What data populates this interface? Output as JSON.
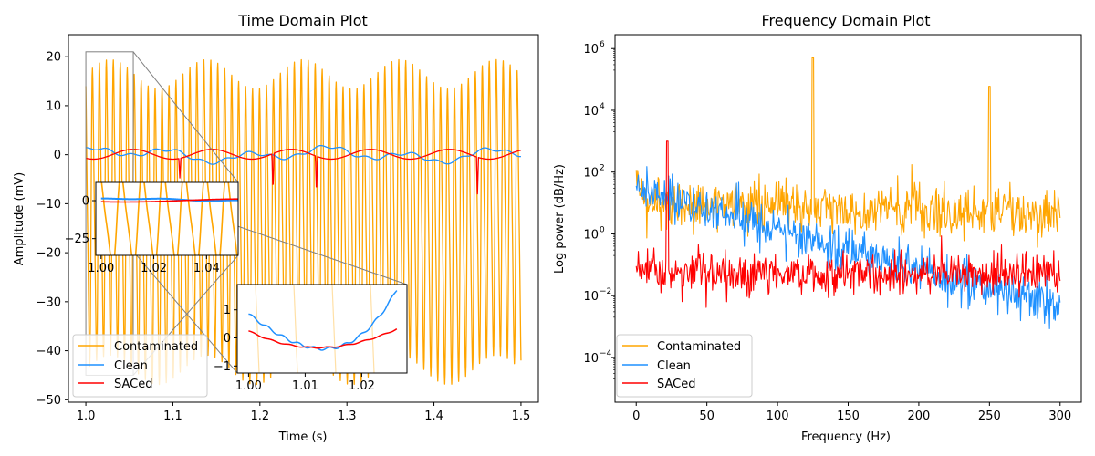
{
  "chart_data": [
    {
      "type": "line",
      "title": "Time Domain Plot",
      "xlabel": "Time (s)",
      "ylabel": "Amplitude (mV)",
      "xlim": [
        0.98,
        1.52
      ],
      "ylim": [
        -50.5,
        24.5
      ],
      "xticks": [
        1.0,
        1.1,
        1.2,
        1.3,
        1.4,
        1.5
      ],
      "xtick_labels": [
        "1.0",
        "1.1",
        "1.2",
        "1.3",
        "1.4",
        "1.5"
      ],
      "yticks": [
        20,
        10,
        0,
        -10,
        -20,
        -30,
        -40,
        -50
      ],
      "ytick_labels": [
        "20",
        "10",
        "0",
        "−10",
        "−20",
        "−30",
        "−40",
        "−50"
      ],
      "legend": {
        "placement": "lower-left",
        "entries": [
          "Contaminated",
          "Clean",
          "SACed"
        ]
      },
      "series": [
        {
          "name": "Contaminated",
          "color": "#ffa500",
          "description": "~125 Hz oscillation, amplitude roughly +14 / -42 mV, plus slow artifact"
        },
        {
          "name": "Clean",
          "color": "#1e90ff",
          "description": "slow wave, amplitude about ±2 mV"
        },
        {
          "name": "SACed",
          "color": "#ff0000",
          "description": "sinusoid about ±1 mV with sharp dips to about -7 mV near t=1.215, 1.265, 1.45"
        }
      ],
      "insets": [
        {
          "xlim": [
            0.998,
            1.052
          ],
          "ylim": [
            -36,
            12
          ],
          "xticks": [
            1.0,
            1.02,
            1.04
          ],
          "xtick_labels": [
            "1.00",
            "1.02",
            "1.04"
          ],
          "yticks": [
            0,
            -25
          ],
          "ytick_labels": [
            "0",
            "−25"
          ]
        },
        {
          "xlim": [
            0.998,
            1.028
          ],
          "ylim": [
            -1.25,
            1.9
          ],
          "xticks": [
            1.0,
            1.01,
            1.02
          ],
          "xtick_labels": [
            "1.00",
            "1.01",
            "1.02"
          ],
          "yticks": [
            1,
            0,
            -1
          ],
          "ytick_labels": [
            "1",
            "0",
            "−1"
          ]
        }
      ]
    },
    {
      "type": "line",
      "title": "Frequency Domain Plot",
      "xlabel": "Frequency (Hz)",
      "ylabel": "Log power (dB/Hz)",
      "yscale": "log",
      "xlim": [
        -15,
        315
      ],
      "ylim_log10": [
        -5.45,
        6.45
      ],
      "xticks": [
        0,
        50,
        100,
        150,
        200,
        250,
        300
      ],
      "xtick_labels": [
        "0",
        "50",
        "100",
        "150",
        "200",
        "250",
        "300"
      ],
      "yticks_log10": [
        6,
        4,
        2,
        0,
        -2,
        -4
      ],
      "ytick_base": "10",
      "ytick_exponents": [
        "6",
        "4",
        "2",
        "0",
        "−2",
        "−4"
      ],
      "legend": {
        "placement": "lower-left",
        "entries": [
          "Contaminated",
          "Clean",
          "SACed"
        ]
      },
      "series": [
        {
          "name": "Contaminated",
          "color": "#ffa500",
          "typical_power": 10,
          "peaks": [
            {
              "x": 125,
              "y": 500000
            },
            {
              "x": 250,
              "y": 60000
            }
          ]
        },
        {
          "name": "Clean",
          "color": "#1e90ff",
          "typical_power": "decays from about 30 at 0 Hz to about 0.002 at 300 Hz"
        },
        {
          "name": "SACed",
          "color": "#ff0000",
          "typical_power": 0.05,
          "peaks": [
            {
              "x": 22,
              "y": 1000
            }
          ]
        }
      ]
    }
  ]
}
